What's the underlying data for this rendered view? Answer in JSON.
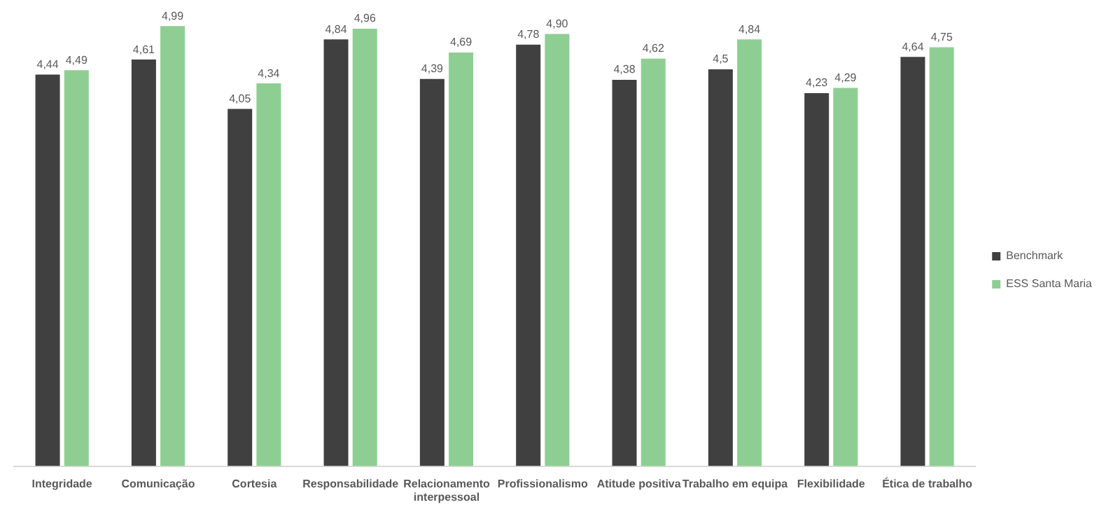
{
  "chart_data": {
    "type": "bar",
    "categories": [
      "Integridade",
      "Comunicação",
      "Cortesia",
      "Responsabilidade",
      "Relacionamento interpessoal",
      "Profissionalismo",
      "Atitude positiva",
      "Trabalho em equipa",
      "Flexibilidade",
      "Ética de trabalho"
    ],
    "series": [
      {
        "name": "Benchmark",
        "color": "#404040",
        "values": [
          4.44,
          4.61,
          4.05,
          4.84,
          4.39,
          4.78,
          4.38,
          4.5,
          4.23,
          4.64
        ],
        "value_labels": [
          "4,44",
          "4,61",
          "4,05",
          "4,84",
          "4,39",
          "4,78",
          "4,38",
          "4,5",
          "4,23",
          "4,64"
        ]
      },
      {
        "name": "ESS Santa Maria",
        "color": "#8fce93",
        "values": [
          4.49,
          4.99,
          4.34,
          4.96,
          4.69,
          4.9,
          4.62,
          4.84,
          4.29,
          4.75
        ],
        "value_labels": [
          "4,49",
          "4,99",
          "4,34",
          "4,96",
          "4,69",
          "4,90",
          "4,62",
          "4,84",
          "4,29",
          "4,75"
        ]
      }
    ],
    "tick_labels": "x",
    "grid": false,
    "legend": "right"
  }
}
